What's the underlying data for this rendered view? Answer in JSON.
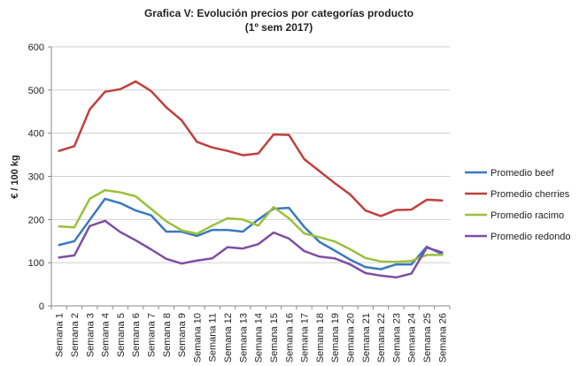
{
  "chart_data": {
    "type": "line",
    "title": "Grafica V: Evolución precios por categorías producto",
    "subtitle": "(1º sem 2017)",
    "ylabel": "€ / 100 kg",
    "xlabel": "",
    "ylim": [
      0,
      600
    ],
    "yticks": [
      0,
      100,
      200,
      300,
      400,
      500,
      600
    ],
    "grid": "horizontal",
    "legend_position": "right",
    "categories": [
      "Semana 1",
      "Semana 2",
      "Semana 3",
      "Semana 4",
      "Semana 5",
      "Semana 6",
      "Semana 7",
      "Semana 8",
      "Semana 9",
      "Semana 10",
      "Semana 11",
      "Semana 12",
      "Semana 13",
      "Semana 14",
      "Semana 15",
      "Semana 16",
      "Semana 17",
      "Semana 18",
      "Semana 19",
      "Semana 20",
      "Semana 21",
      "Semana 22",
      "Semana 23",
      "Semana 24",
      "Semana 25",
      "Semana 26"
    ],
    "series": [
      {
        "name": "Promedio beef",
        "color": "#3a78c0",
        "values": [
          141,
          150,
          199,
          248,
          238,
          221,
          210,
          172,
          172,
          162,
          176,
          176,
          172,
          200,
          225,
          227,
          183,
          148,
          128,
          107,
          90,
          85,
          96,
          96,
          137,
          120
        ]
      },
      {
        "name": "Promedio cherries",
        "color": "#c0403c",
        "values": [
          359,
          370,
          455,
          496,
          502,
          520,
          498,
          460,
          430,
          380,
          367,
          359,
          349,
          353,
          397,
          396,
          340,
          312,
          284,
          258,
          221,
          208,
          222,
          223,
          246,
          244
        ]
      },
      {
        "name": "Promedio racimo",
        "color": "#9cc03c",
        "values": [
          184,
          182,
          248,
          268,
          263,
          254,
          225,
          196,
          175,
          167,
          186,
          203,
          200,
          186,
          229,
          203,
          168,
          159,
          149,
          131,
          111,
          103,
          102,
          104,
          118,
          118
        ]
      },
      {
        "name": "Promedio redondo",
        "color": "#7d4fa3",
        "values": [
          112,
          117,
          185,
          197,
          171,
          152,
          131,
          109,
          98,
          105,
          110,
          136,
          133,
          143,
          170,
          156,
          127,
          114,
          110,
          96,
          76,
          70,
          66,
          75,
          135,
          124
        ]
      }
    ]
  }
}
